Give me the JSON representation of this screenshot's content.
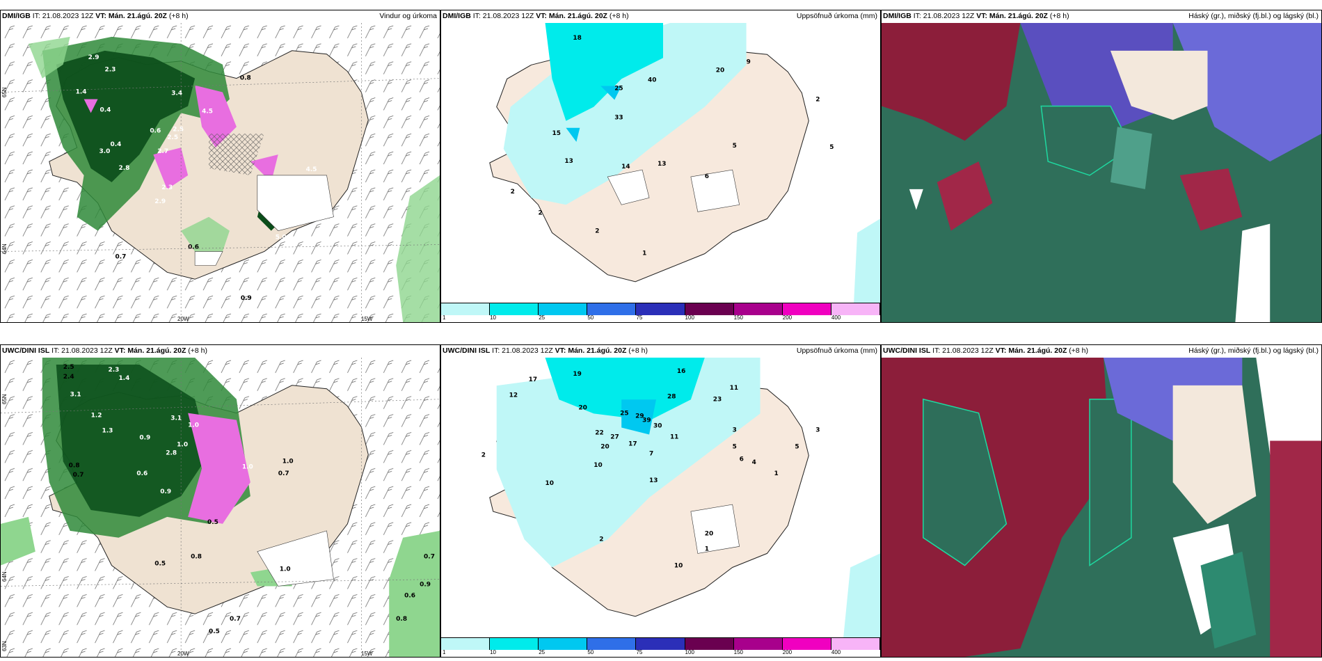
{
  "panels": [
    {
      "model": "DMI/IGB",
      "it": "IT: 21.08.2023 12Z",
      "vt": "VT: Mán. 21.ágú. 20Z",
      "lead": "(+8 h)",
      "product": "Vindur og úrkoma"
    },
    {
      "model": "DMI/IGB",
      "it": "IT: 21.08.2023 12Z",
      "vt": "VT: Mán. 21.ágú. 20Z",
      "lead": "(+8 h)",
      "product": "Uppsöfnuð úrkoma (mm)"
    },
    {
      "model": "DMI/IGB",
      "it": "IT: 21.08.2023 12Z",
      "vt": "VT: Mán. 21.ágú. 20Z",
      "lead": "(+8 h)",
      "product": "Háský (gr.), miðský (fj.bl.) og lágský (bl.)"
    },
    {
      "model": "UWC/DINI ISL",
      "it": "IT: 21.08.2023 12Z",
      "vt": "VT: Mán. 21.ágú. 20Z",
      "lead": "(+8 h)",
      "product": ""
    },
    {
      "model": "UWC/DINI ISL",
      "it": "IT: 21.08.2023 12Z",
      "vt": "VT: Mán. 21.ágú. 20Z",
      "lead": "(+8 h)",
      "product": "Uppsöfnuð úrkoma (mm)"
    },
    {
      "model": "UWC/DINI ISL",
      "it": "IT: 21.08.2023 12Z",
      "vt": "VT: Mán. 21.ágú. 20Z",
      "lead": "(+8 h)",
      "product": "Háský (gr.), miðský (fj.bl.) og lágský (bl.)"
    }
  ],
  "axes": {
    "lon20": "20W",
    "lon15": "15W",
    "lat65": "65N",
    "lat64": "64N",
    "lat63": "63N"
  },
  "legend": {
    "labels": [
      "1",
      "10",
      "25",
      "50",
      "75",
      "100",
      "150",
      "200",
      "400"
    ],
    "colors": [
      "#bff7f7",
      "#00ebeb",
      "#00c8f0",
      "#2f6fe8",
      "#2b2fb8",
      "#6a0050",
      "#a8008c",
      "#f000c0",
      "#f7b4f7"
    ]
  },
  "values": {
    "p1": [
      "2.9",
      "2.3",
      "1.4",
      "0.4",
      "3.4",
      "0.8",
      "0.6",
      "0.4",
      "3.0",
      "2.8",
      "2.7",
      "2.5",
      "4.5",
      "2.5",
      "2.3",
      "2.9",
      "5.0",
      "4.5",
      "0.6",
      "0.7",
      "0.9"
    ],
    "p2": [
      "18",
      "25",
      "40",
      "33",
      "20",
      "9",
      "2",
      "15",
      "5",
      "13",
      "14",
      "13",
      "2",
      "2",
      "2",
      "1",
      "6",
      "5"
    ],
    "p4": [
      "2.5",
      "2.4",
      "3.1",
      "2.3",
      "1.4",
      "3.1",
      "1.2",
      "0.9",
      "1.0",
      "1.3",
      "0.8",
      "0.7",
      "0.6",
      "1.0",
      "2.8",
      "0.9",
      "1.0",
      "0.7",
      "0.5",
      "0.8",
      "0.5",
      "1.0",
      "1.0",
      "0.7",
      "0.9",
      "0.6",
      "0.8",
      "0.5",
      "0.7"
    ],
    "p5": [
      "19",
      "16",
      "17",
      "12",
      "20",
      "25",
      "29",
      "28",
      "22",
      "27",
      "23",
      "11",
      "20",
      "39",
      "30",
      "17",
      "11",
      "13",
      "10",
      "10",
      "7",
      "3",
      "5",
      "2",
      "3",
      "1",
      "6",
      "4",
      "5",
      "20",
      "2",
      "10",
      "1"
    ]
  }
}
